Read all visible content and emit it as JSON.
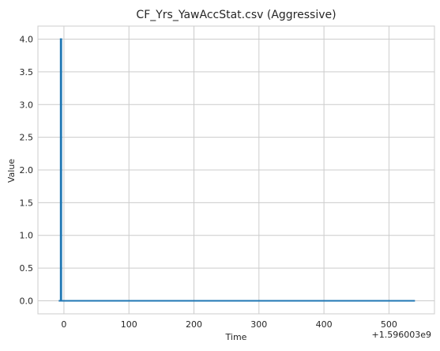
{
  "chart_data": {
    "type": "line",
    "title": "CF_Yrs_YawAccStat.csv (Aggressive)",
    "xlabel": "Time",
    "ylabel": "Value",
    "x_offset_label": "+1.596003e9",
    "xlim": [
      -40,
      570
    ],
    "ylim": [
      -0.2,
      4.2
    ],
    "x_ticks": [
      0,
      100,
      200,
      300,
      400,
      500
    ],
    "x_tick_labels": [
      "0",
      "100",
      "200",
      "300",
      "400",
      "500"
    ],
    "y_ticks": [
      0.0,
      0.5,
      1.0,
      1.5,
      2.0,
      2.5,
      3.0,
      3.5,
      4.0
    ],
    "y_tick_labels": [
      "0.0",
      "0.5",
      "1.0",
      "1.5",
      "2.0",
      "2.5",
      "3.0",
      "3.5",
      "4.0"
    ],
    "grid": true,
    "color": "#1f77b4",
    "series": [
      {
        "x": [
          -8,
          -5,
          -5,
          -4,
          -4,
          540
        ],
        "y": [
          0,
          0,
          4,
          4,
          0,
          0
        ]
      }
    ]
  }
}
